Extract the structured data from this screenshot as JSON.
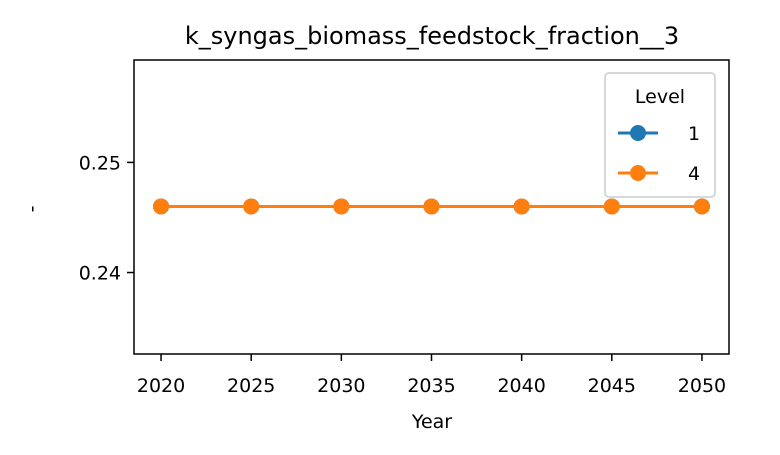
{
  "chart_data": {
    "type": "line",
    "title": "k_syngas_biomass_feedstock_fraction__3",
    "xlabel": "Year",
    "ylabel": "-",
    "x": [
      2020,
      2025,
      2030,
      2035,
      2040,
      2045,
      2050
    ],
    "xticks": [
      "2020",
      "2025",
      "2030",
      "2035",
      "2040",
      "2045",
      "2050"
    ],
    "xlim": [
      2018.5,
      2051.5
    ],
    "yticks": [
      "0.24",
      "0.25"
    ],
    "ytick_values": [
      0.24,
      0.25
    ],
    "ylim": [
      0.2326,
      0.2593
    ],
    "grid": false,
    "legend": {
      "title": "Level",
      "placement": "top-right"
    },
    "series": [
      {
        "name": "1",
        "color": "#1f77b4",
        "marker": "circle",
        "values": [
          0.246,
          0.246,
          0.246,
          0.246,
          0.246,
          0.246,
          0.246
        ]
      },
      {
        "name": "4",
        "color": "#ff7f0e",
        "marker": "circle",
        "values": [
          0.246,
          0.246,
          0.246,
          0.246,
          0.246,
          0.246,
          0.246
        ]
      }
    ]
  }
}
